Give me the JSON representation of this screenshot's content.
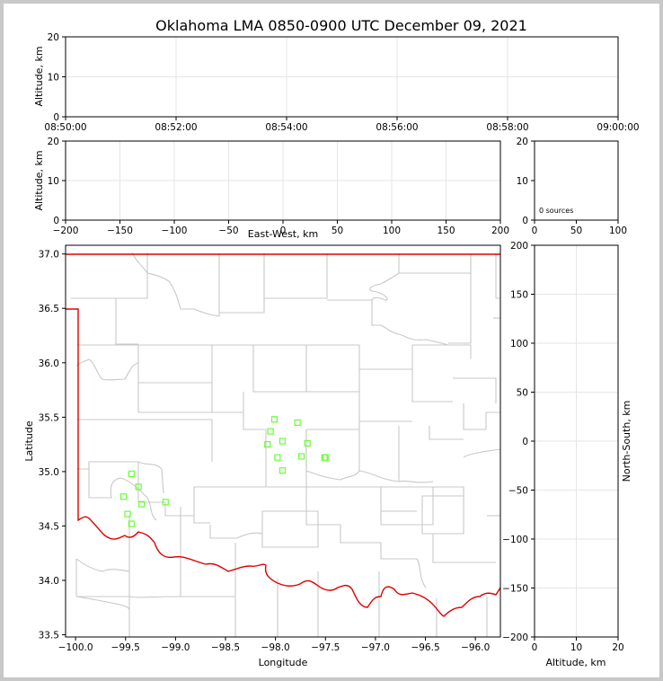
{
  "title": "Oklahoma LMA 0850-0900 UTC December 09, 2021",
  "colors": {
    "grid": "#e6e6e6",
    "county": "#c8c8c8",
    "state": "#e00000",
    "source": "#66ff33",
    "frame": "#000000"
  },
  "chart_data": [
    {
      "type": "scatter",
      "name": "time-altitude",
      "ylabel": "Altitude, km",
      "ylim": [
        0,
        20
      ],
      "yticks": [
        "0",
        "10",
        "20"
      ],
      "xticks": [
        "08:50:00",
        "08:52:00",
        "08:54:00",
        "08:56:00",
        "08:58:00",
        "09:00:00"
      ],
      "points": []
    },
    {
      "type": "scatter",
      "name": "east-west-altitude",
      "xlabel": "East-West, km",
      "ylabel": "Altitude, km",
      "xlim": [
        -200,
        200
      ],
      "ylim": [
        0,
        20
      ],
      "xticks": [
        "−200",
        "−150",
        "−100",
        "−50",
        "0",
        "50",
        "100",
        "150",
        "200"
      ],
      "yticks": [
        "0",
        "10",
        "20"
      ],
      "points": []
    },
    {
      "type": "histogram",
      "name": "altitude-histogram",
      "xlim": [
        0,
        100
      ],
      "ylim": [
        0,
        20
      ],
      "xticks": [
        "0",
        "50",
        "100"
      ],
      "yticks": [
        "0",
        "10",
        "20"
      ],
      "annotation": "0 sources",
      "values": []
    },
    {
      "type": "scatter",
      "name": "plan-view",
      "xlabel": "Longitude",
      "ylabel": "Latitude",
      "xlim": [
        -100.1,
        -95.75
      ],
      "ylim": [
        33.48,
        37.08
      ],
      "xticks": [
        "−100.0",
        "−99.5",
        "−99.0",
        "−98.5",
        "−98.0",
        "−97.5",
        "−97.0",
        "−96.5",
        "−96.0"
      ],
      "yticks": [
        "33.5",
        "34.0",
        "34.5",
        "35.0",
        "35.5",
        "36.0",
        "36.5",
        "37.0"
      ],
      "points": [
        [
          -99.44,
          34.98
        ],
        [
          -99.37,
          34.86
        ],
        [
          -99.52,
          34.77
        ],
        [
          -99.34,
          34.7
        ],
        [
          -99.1,
          34.72
        ],
        [
          -99.48,
          34.61
        ],
        [
          -99.44,
          34.52
        ],
        [
          -98.01,
          35.48
        ],
        [
          -97.78,
          35.45
        ],
        [
          -98.05,
          35.37
        ],
        [
          -97.93,
          35.28
        ],
        [
          -97.68,
          35.26
        ],
        [
          -98.08,
          35.25
        ],
        [
          -97.98,
          35.13
        ],
        [
          -97.74,
          35.14
        ],
        [
          -97.51,
          35.13
        ],
        [
          -97.5,
          35.13
        ],
        [
          -97.93,
          35.01
        ]
      ]
    },
    {
      "type": "scatter",
      "name": "north-south-altitude",
      "xlabel": "Altitude, km",
      "ylabel": "North-South, km",
      "xlim": [
        0,
        20
      ],
      "ylim": [
        -200,
        200
      ],
      "xticks": [
        "0",
        "10",
        "20"
      ],
      "yticks": [
        "−200",
        "−150",
        "−100",
        "−50",
        "0",
        "50",
        "100",
        "150",
        "200"
      ],
      "points": []
    }
  ]
}
